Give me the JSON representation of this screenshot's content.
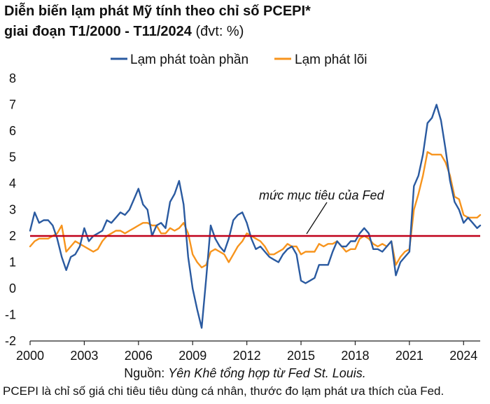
{
  "title": {
    "line1": "Diễn biến lạm phát Mỹ tính theo chỉ số PCEPI*",
    "line2_bold": "giai đoạn T1/2000 - T11/2024",
    "line2_unit": " (đvt: %)"
  },
  "source": {
    "prefix": "Nguồn: ",
    "text": "Yên Khê tổng hợp từ Fed St. Louis."
  },
  "footnote": "PCEPI là chỉ số giá chi tiêu tiêu dùng cá nhân, thước đo lạm phát ưa thích của Fed.",
  "colors": {
    "headline": "#2a5aa0",
    "core": "#f7941d",
    "target": "#c0001a",
    "axis": "#222222"
  },
  "chart_data": {
    "type": "line",
    "xlabel": "",
    "ylabel": "",
    "xlim": [
      2000,
      2024.92
    ],
    "ylim": [
      -2,
      8
    ],
    "x_ticks": [
      "2000",
      "2003",
      "2006",
      "2009",
      "2012",
      "2015",
      "2018",
      "2021",
      "2024"
    ],
    "x_tick_values": [
      2000,
      2003,
      2006,
      2009,
      2012,
      2015,
      2018,
      2021,
      2024
    ],
    "y_ticks": [
      "-2",
      "-1",
      "0",
      "1",
      "2",
      "3",
      "4",
      "5",
      "6",
      "7",
      "8"
    ],
    "y_tick_values": [
      -2,
      -1,
      0,
      1,
      2,
      3,
      4,
      5,
      6,
      7,
      8
    ],
    "legend": [
      "Lạm phát toàn phần",
      "Lạm phát lõi"
    ],
    "legend_position": "top",
    "target": {
      "value": 2,
      "label": "mức mục tiêu của Fed"
    },
    "series": [
      {
        "name": "Lạm phát toàn phần",
        "x": [
          2000.0,
          2000.25,
          2000.5,
          2000.75,
          2001.0,
          2001.25,
          2001.5,
          2001.75,
          2002.0,
          2002.25,
          2002.5,
          2002.75,
          2003.0,
          2003.25,
          2003.5,
          2003.75,
          2004.0,
          2004.25,
          2004.5,
          2004.75,
          2005.0,
          2005.25,
          2005.5,
          2005.75,
          2006.0,
          2006.25,
          2006.5,
          2006.75,
          2007.0,
          2007.25,
          2007.5,
          2007.75,
          2008.0,
          2008.25,
          2008.5,
          2008.75,
          2009.0,
          2009.25,
          2009.5,
          2009.75,
          2010.0,
          2010.25,
          2010.5,
          2010.75,
          2011.0,
          2011.25,
          2011.5,
          2011.75,
          2012.0,
          2012.25,
          2012.5,
          2012.75,
          2013.0,
          2013.25,
          2013.5,
          2013.75,
          2014.0,
          2014.25,
          2014.5,
          2014.75,
          2015.0,
          2015.25,
          2015.5,
          2015.75,
          2016.0,
          2016.25,
          2016.5,
          2016.75,
          2017.0,
          2017.25,
          2017.5,
          2017.75,
          2018.0,
          2018.25,
          2018.5,
          2018.75,
          2019.0,
          2019.25,
          2019.5,
          2019.75,
          2020.0,
          2020.25,
          2020.5,
          2020.75,
          2021.0,
          2021.25,
          2021.5,
          2021.75,
          2022.0,
          2022.25,
          2022.5,
          2022.75,
          2023.0,
          2023.25,
          2023.5,
          2023.75,
          2024.0,
          2024.25,
          2024.5,
          2024.75,
          2024.92
        ],
        "values": [
          2.2,
          2.9,
          2.5,
          2.6,
          2.6,
          2.4,
          1.9,
          1.2,
          0.7,
          1.2,
          1.3,
          1.6,
          2.3,
          1.8,
          2.0,
          2.1,
          2.2,
          2.6,
          2.5,
          2.7,
          2.9,
          2.8,
          3.0,
          3.4,
          3.8,
          3.2,
          3.0,
          2.0,
          2.4,
          2.5,
          2.3,
          3.3,
          3.6,
          4.1,
          3.2,
          1.2,
          0.0,
          -0.8,
          -1.5,
          0.4,
          2.4,
          1.9,
          1.6,
          1.4,
          1.9,
          2.6,
          2.8,
          2.9,
          2.5,
          1.9,
          1.5,
          1.6,
          1.4,
          1.2,
          1.1,
          1.0,
          1.3,
          1.5,
          1.6,
          1.3,
          0.3,
          0.2,
          0.3,
          0.4,
          0.9,
          0.9,
          0.9,
          1.4,
          1.8,
          1.6,
          1.6,
          1.8,
          1.8,
          2.1,
          2.3,
          2.1,
          1.5,
          1.5,
          1.4,
          1.6,
          1.8,
          0.5,
          1.0,
          1.2,
          1.4,
          3.9,
          4.3,
          5.1,
          6.3,
          6.5,
          7.0,
          6.4,
          5.3,
          4.1,
          3.3,
          3.0,
          2.5,
          2.7,
          2.5,
          2.3,
          2.4
        ]
      },
      {
        "name": "Lạm phát lõi",
        "x": [
          2000.0,
          2000.25,
          2000.5,
          2000.75,
          2001.0,
          2001.25,
          2001.5,
          2001.75,
          2002.0,
          2002.25,
          2002.5,
          2002.75,
          2003.0,
          2003.25,
          2003.5,
          2003.75,
          2004.0,
          2004.25,
          2004.5,
          2004.75,
          2005.0,
          2005.25,
          2005.5,
          2005.75,
          2006.0,
          2006.25,
          2006.5,
          2006.75,
          2007.0,
          2007.25,
          2007.5,
          2007.75,
          2008.0,
          2008.25,
          2008.5,
          2008.75,
          2009.0,
          2009.25,
          2009.5,
          2009.75,
          2010.0,
          2010.25,
          2010.5,
          2010.75,
          2011.0,
          2011.25,
          2011.5,
          2011.75,
          2012.0,
          2012.25,
          2012.5,
          2012.75,
          2013.0,
          2013.25,
          2013.5,
          2013.75,
          2014.0,
          2014.25,
          2014.5,
          2014.75,
          2015.0,
          2015.25,
          2015.5,
          2015.75,
          2016.0,
          2016.25,
          2016.5,
          2016.75,
          2017.0,
          2017.25,
          2017.5,
          2017.75,
          2018.0,
          2018.25,
          2018.5,
          2018.75,
          2019.0,
          2019.25,
          2019.5,
          2019.75,
          2020.0,
          2020.25,
          2020.5,
          2020.75,
          2021.0,
          2021.25,
          2021.5,
          2021.75,
          2022.0,
          2022.25,
          2022.5,
          2022.75,
          2023.0,
          2023.25,
          2023.5,
          2023.75,
          2024.0,
          2024.25,
          2024.5,
          2024.75,
          2024.92
        ],
        "values": [
          1.6,
          1.8,
          1.9,
          1.9,
          1.9,
          2.0,
          2.1,
          2.4,
          1.4,
          1.6,
          1.8,
          1.7,
          1.6,
          1.5,
          1.4,
          1.5,
          1.8,
          2.0,
          2.1,
          2.2,
          2.2,
          2.1,
          2.2,
          2.3,
          2.4,
          2.5,
          2.5,
          2.4,
          2.4,
          2.1,
          2.1,
          2.3,
          2.2,
          2.3,
          2.5,
          2.1,
          1.3,
          1.0,
          0.8,
          0.9,
          1.4,
          1.5,
          1.4,
          1.3,
          1.0,
          1.3,
          1.6,
          1.8,
          2.1,
          2.0,
          1.9,
          1.8,
          1.6,
          1.3,
          1.3,
          1.4,
          1.5,
          1.7,
          1.6,
          1.6,
          1.3,
          1.4,
          1.4,
          1.4,
          1.7,
          1.6,
          1.7,
          1.7,
          1.8,
          1.6,
          1.4,
          1.5,
          1.5,
          1.9,
          2.0,
          1.9,
          1.7,
          1.6,
          1.7,
          1.6,
          1.8,
          0.9,
          1.2,
          1.4,
          1.5,
          3.0,
          3.6,
          4.3,
          5.2,
          5.1,
          5.1,
          5.1,
          4.8,
          4.3,
          3.5,
          3.4,
          2.8,
          2.7,
          2.7,
          2.7,
          2.8
        ]
      }
    ]
  }
}
